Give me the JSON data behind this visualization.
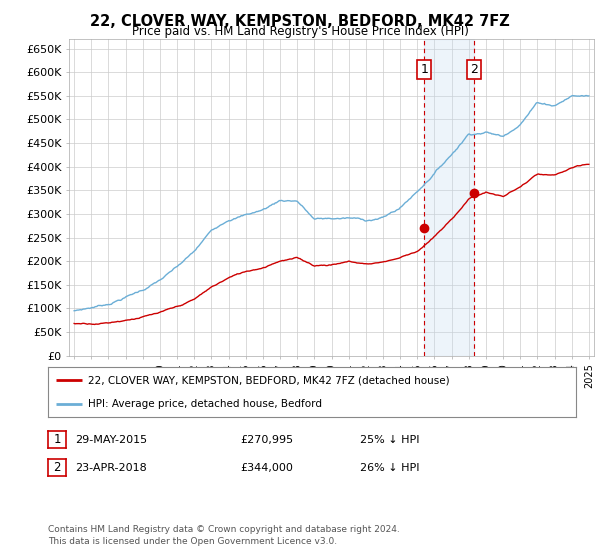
{
  "title": "22, CLOVER WAY, KEMPSTON, BEDFORD, MK42 7FZ",
  "subtitle": "Price paid vs. HM Land Registry's House Price Index (HPI)",
  "ylabel_ticks": [
    "£0",
    "£50K",
    "£100K",
    "£150K",
    "£200K",
    "£250K",
    "£300K",
    "£350K",
    "£400K",
    "£450K",
    "£500K",
    "£550K",
    "£600K",
    "£650K"
  ],
  "ytick_vals": [
    0,
    50000,
    100000,
    150000,
    200000,
    250000,
    300000,
    350000,
    400000,
    450000,
    500000,
    550000,
    600000,
    650000
  ],
  "ylim": [
    0,
    670000
  ],
  "sale1_date": 2015.41,
  "sale1_price": 270995,
  "sale2_date": 2018.31,
  "sale2_price": 344000,
  "legend_line1": "22, CLOVER WAY, KEMPSTON, BEDFORD, MK42 7FZ (detached house)",
  "legend_line2": "HPI: Average price, detached house, Bedford",
  "footer": "Contains HM Land Registry data © Crown copyright and database right 2024.\nThis data is licensed under the Open Government Licence v3.0.",
  "hpi_color": "#6baed6",
  "price_color": "#cc0000",
  "vline_color": "#cc0000",
  "shade_color": "#c6dbef",
  "background_color": "#ffffff",
  "grid_color": "#cccccc",
  "hpi_knots": [
    1995,
    1996,
    1997,
    1998,
    1999,
    2000,
    2001,
    2002,
    2003,
    2004,
    2005,
    2006,
    2007,
    2008,
    2009,
    2010,
    2011,
    2012,
    2013,
    2014,
    2015,
    2016,
    2017,
    2018,
    2019,
    2020,
    2021,
    2022,
    2023,
    2024,
    2025
  ],
  "hpi_vals": [
    95000,
    102000,
    110000,
    125000,
    140000,
    160000,
    185000,
    215000,
    258000,
    285000,
    295000,
    305000,
    325000,
    325000,
    285000,
    285000,
    285000,
    280000,
    285000,
    305000,
    340000,
    380000,
    420000,
    465000,
    470000,
    460000,
    490000,
    535000,
    530000,
    550000,
    550000
  ],
  "price_knots": [
    1995,
    1996,
    1997,
    1998,
    1999,
    2000,
    2001,
    2002,
    2003,
    2004,
    2005,
    2006,
    2007,
    2008,
    2009,
    2010,
    2011,
    2012,
    2013,
    2014,
    2015,
    2016,
    2017,
    2018,
    2019,
    2020,
    2021,
    2022,
    2023,
    2024,
    2025
  ],
  "price_vals": [
    68000,
    70000,
    73000,
    80000,
    88000,
    95000,
    105000,
    120000,
    145000,
    165000,
    178000,
    188000,
    205000,
    210000,
    195000,
    198000,
    205000,
    200000,
    205000,
    215000,
    230000,
    260000,
    295000,
    340000,
    355000,
    345000,
    365000,
    390000,
    385000,
    400000,
    405000
  ]
}
